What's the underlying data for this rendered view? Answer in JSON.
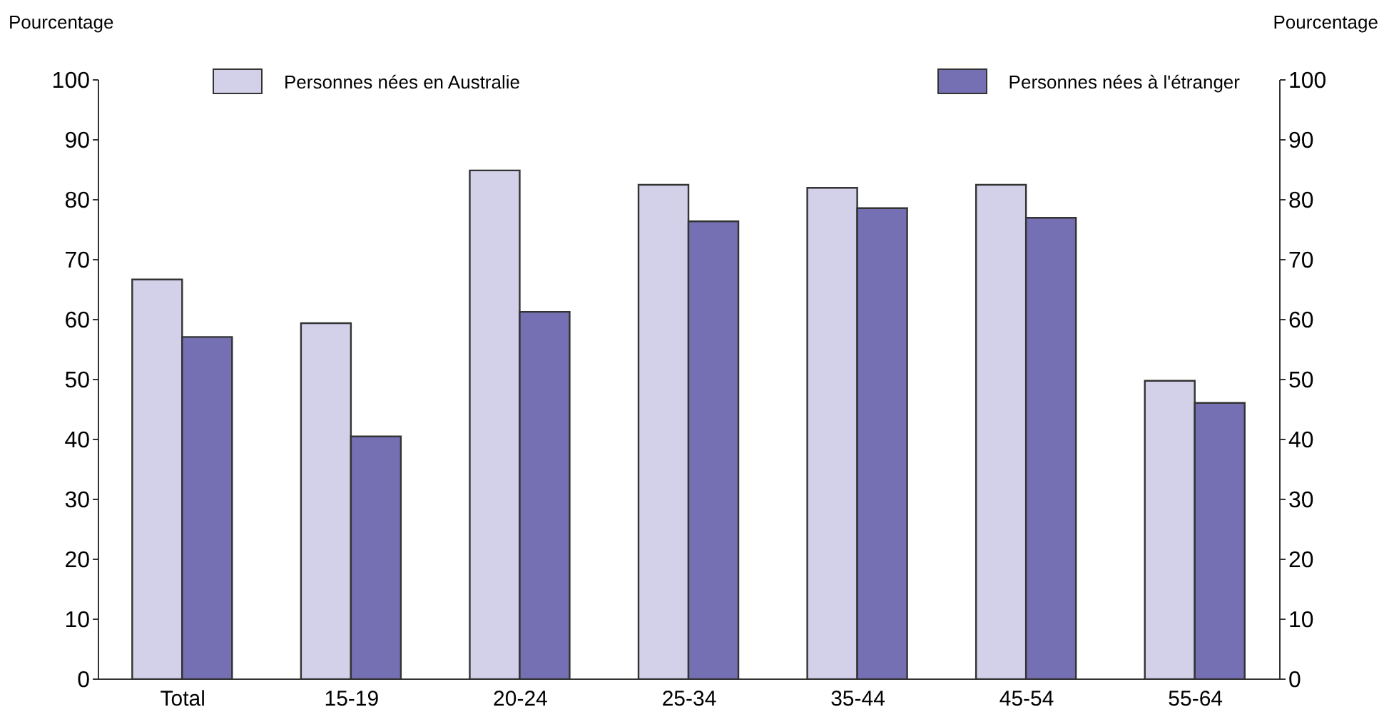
{
  "chart_data": {
    "type": "bar",
    "ylabel": "Pourcentage",
    "y2label": "Pourcentage",
    "categories": [
      "Total",
      "15-19",
      "20-24",
      "25-34",
      "35-44",
      "45-54",
      "55-64"
    ],
    "series": [
      {
        "name": "Personnes nées en Australie",
        "color": "#d3d1e9",
        "values": [
          66.7,
          59.4,
          84.9,
          82.5,
          82.0,
          82.5,
          49.8
        ]
      },
      {
        "name": "Personnes nées à l'étranger",
        "color": "#7570b3",
        "values": [
          57.1,
          40.5,
          61.3,
          76.4,
          78.6,
          77.0,
          46.1
        ]
      }
    ],
    "ylim": [
      0,
      100
    ],
    "yticks": [
      0,
      10,
      20,
      30,
      40,
      50,
      60,
      70,
      80,
      90,
      100
    ],
    "y2lim": [
      0,
      100
    ],
    "y2ticks": [
      0,
      10,
      20,
      30,
      40,
      50,
      60,
      70,
      80,
      90,
      100
    ],
    "legend": "top",
    "grid": false
  }
}
